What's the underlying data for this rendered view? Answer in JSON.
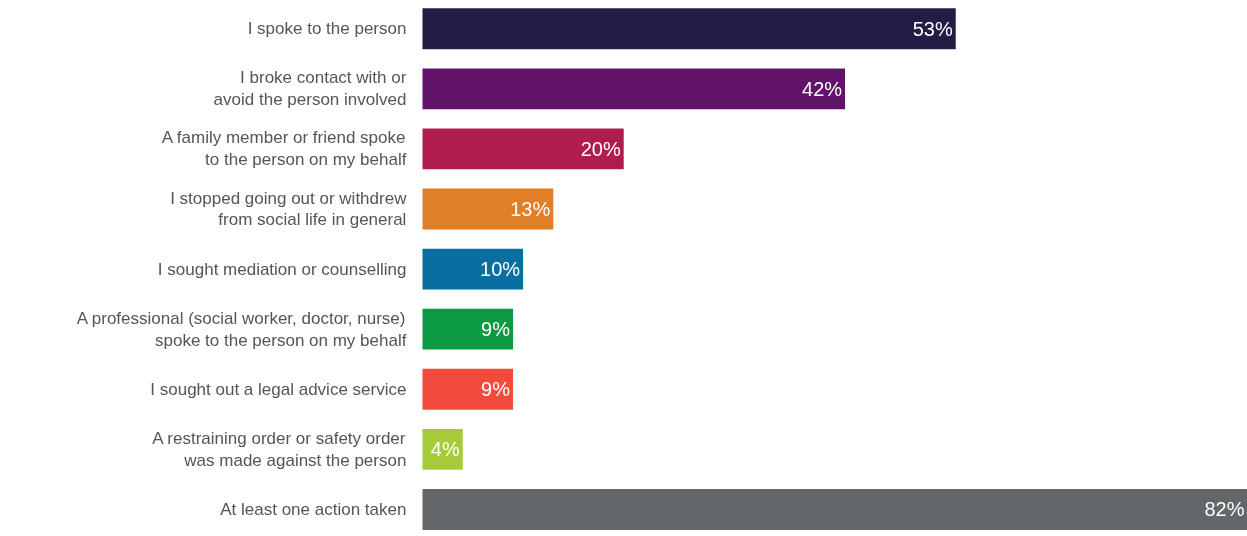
{
  "chart_data": {
    "type": "bar",
    "orientation": "horizontal",
    "categories": [
      "I spoke to the person",
      "I broke contact with or\navoid the person involved",
      "A family member or friend spoke\nto the person on my behalf",
      "I stopped going out or withdrew\nfrom social life in general",
      "I sought mediation or counselling",
      "A professional (social worker, doctor, nurse)\nspoke to the person on my behalf",
      "I sought out a legal advice service",
      "A restraining order or safety order\nwas made against the person",
      "At least one action taken"
    ],
    "values": [
      53,
      42,
      20,
      13,
      10,
      9,
      9,
      4,
      82
    ],
    "value_labels": [
      "53%",
      "42%",
      "20%",
      "13%",
      "10%",
      "9%",
      "9%",
      "4%",
      "82%"
    ],
    "colors": [
      "#241c45",
      "#62136a",
      "#b01c4e",
      "#e07f27",
      "#0a6fa0",
      "#0c9943",
      "#f04b3c",
      "#a6cb3a",
      "#646769"
    ],
    "grid": false
  }
}
